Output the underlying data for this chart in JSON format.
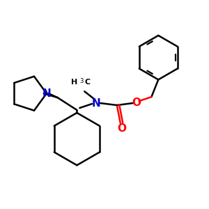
{
  "background_color": "#ffffff",
  "bond_color": "#000000",
  "nitrogen_color": "#0000cc",
  "oxygen_color": "#ff0000",
  "line_width": 1.8,
  "font_size": 10,
  "fig_size": [
    3.0,
    3.0
  ],
  "dpi": 100,
  "xlim": [
    0,
    300
  ],
  "ylim": [
    0,
    300
  ]
}
